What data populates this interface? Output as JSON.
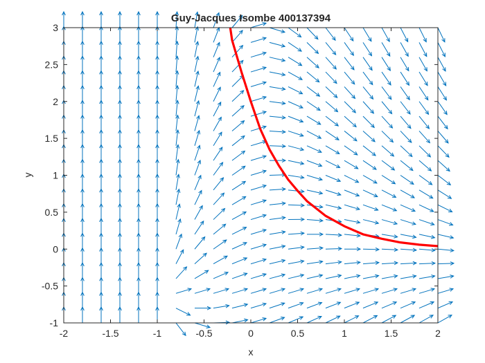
{
  "chart_data": {
    "type": "quiver",
    "title": "Guy-Jacques Isombe 400137394",
    "xlabel": "x",
    "ylabel": "y",
    "xlim": [
      -2,
      2
    ],
    "ylim": [
      -1,
      3
    ],
    "xticks": [
      -2,
      -1.5,
      -1,
      -0.5,
      0,
      0.5,
      1,
      1.5,
      2
    ],
    "yticks": [
      -1,
      -0.5,
      0,
      0.5,
      1,
      1.5,
      2,
      2.5,
      3
    ],
    "xtick_labels": [
      "-2",
      "-1.5",
      "-1",
      "-0.5",
      "0",
      "0.5",
      "1",
      "1.5",
      "2"
    ],
    "ytick_labels": [
      "-1",
      "-0.5",
      "0",
      "0.5",
      "1",
      "1.5",
      "2",
      "2.5",
      "3"
    ],
    "grid": false,
    "series": [
      {
        "kind": "direction-field",
        "color": "#0072BD",
        "x_range": [
          -2,
          2
        ],
        "y_range": [
          -1,
          3
        ],
        "spacing": 0.2
      },
      {
        "kind": "solution-curve",
        "color": "#FF0000",
        "x": [
          -0.22,
          -0.2,
          -0.1,
          0,
          0.1,
          0.2,
          0.3,
          0.4,
          0.5,
          0.6,
          0.7,
          0.8,
          1.0,
          1.2,
          1.4,
          1.6,
          1.8,
          2.0
        ],
        "y": [
          3.0,
          2.83,
          2.4,
          2.0,
          1.63,
          1.35,
          1.13,
          0.94,
          0.79,
          0.65,
          0.55,
          0.45,
          0.31,
          0.2,
          0.14,
          0.09,
          0.06,
          0.04
        ]
      }
    ]
  }
}
